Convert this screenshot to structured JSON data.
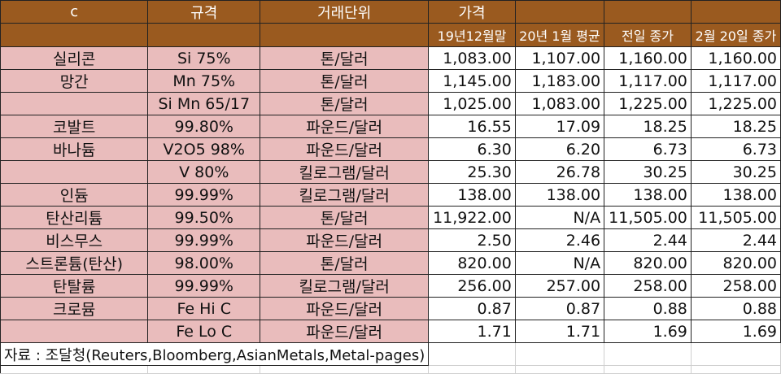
{
  "header": {
    "row1": [
      "c",
      "규격",
      "거래단위",
      "가격",
      "",
      "",
      ""
    ],
    "row2": [
      "",
      "",
      "",
      "19년12월말",
      "20년 1월 평균",
      "전일 종가",
      "2월 20일 종가"
    ]
  },
  "rows": [
    {
      "name": "실리콘",
      "spec": "Si 75%",
      "unit": "톤/달러",
      "v1": "1,083.00",
      "v2": "1,107.00",
      "v3": "1,160.00",
      "v4": "1,160.00"
    },
    {
      "name": "망간",
      "spec": "Mn 75%",
      "unit": "톤/달러",
      "v1": "1,145.00",
      "v2": "1,183.00",
      "v3": "1,117.00",
      "v4": "1,117.00"
    },
    {
      "name": "",
      "spec": "Si Mn 65/17",
      "unit": "톤/달러",
      "v1": "1,025.00",
      "v2": "1,083.00",
      "v3": "1,225.00",
      "v4": "1,225.00"
    },
    {
      "name": "코발트",
      "spec": "99.80%",
      "unit": "파운드/달러",
      "v1": "16.55",
      "v2": "17.09",
      "v3": "18.25",
      "v4": "18.25"
    },
    {
      "name": "바나듐",
      "spec": "V2O5 98%",
      "unit": "파운드/달러",
      "v1": "6.30",
      "v2": "6.20",
      "v3": "6.73",
      "v4": "6.73"
    },
    {
      "name": "",
      "spec": "V 80%",
      "unit": "킬로그램/달러",
      "v1": "25.30",
      "v2": "26.78",
      "v3": "30.25",
      "v4": "30.25"
    },
    {
      "name": "인듐",
      "spec": "99.99%",
      "unit": "킬로그램/달러",
      "v1": "138.00",
      "v2": "138.00",
      "v3": "138.00",
      "v4": "138.00"
    },
    {
      "name": "탄산리튬",
      "spec": "99.50%",
      "unit": "톤/달러",
      "v1": "11,922.00",
      "v2": "N/A",
      "v3": "11,505.00",
      "v4": "11,505.00"
    },
    {
      "name": "비스무스",
      "spec": "99.99%",
      "unit": "파운드/달러",
      "v1": "2.50",
      "v2": "2.46",
      "v3": "2.44",
      "v4": "2.44"
    },
    {
      "name": "스트론튬(탄산)",
      "spec": "98.00%",
      "unit": "톤/달러",
      "v1": "820.00",
      "v2": "N/A",
      "v3": "820.00",
      "v4": "820.00"
    },
    {
      "name": "탄탈륨",
      "spec": "99.99%",
      "unit": "킬로그램/달러",
      "v1": "256.00",
      "v2": "257.00",
      "v3": "258.00",
      "v4": "258.00"
    },
    {
      "name": "크로뮴",
      "spec": "Fe Hi C",
      "unit": "파운드/달러",
      "v1": "0.87",
      "v2": "0.87",
      "v3": "0.88",
      "v4": "0.88"
    },
    {
      "name": "",
      "spec": "Fe Lo C",
      "unit": "파운드/달러",
      "v1": "1.71",
      "v2": "1.71",
      "v3": "1.69",
      "v4": "1.69"
    }
  ],
  "source": "자료 : 조달청(Reuters,Bloomberg,AsianMetals,Metal-pages)",
  "colors": {
    "header_bg": "#9a5a1f",
    "label_bg": "#e9bcbc"
  }
}
